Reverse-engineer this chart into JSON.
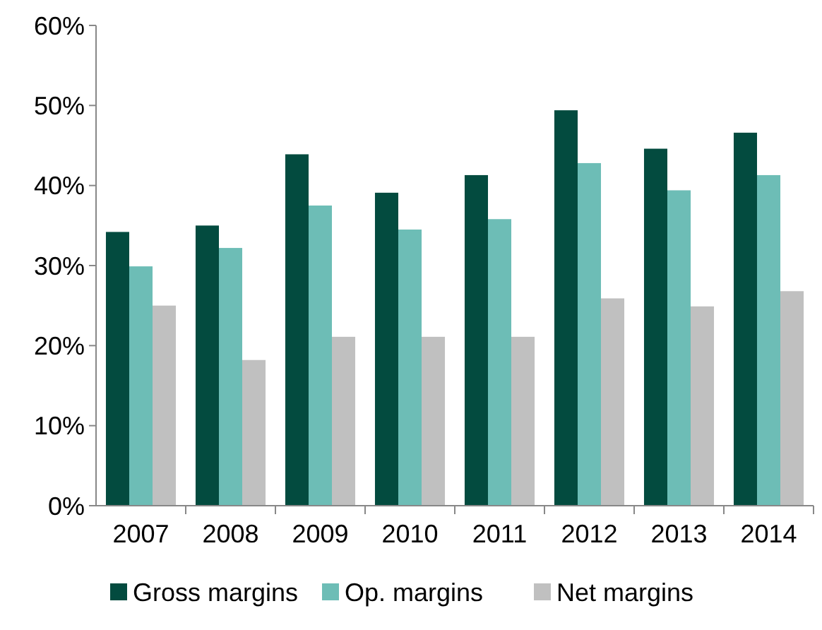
{
  "chart_data": {
    "type": "bar",
    "categories": [
      "2007",
      "2008",
      "2009",
      "2010",
      "2011",
      "2012",
      "2013",
      "2014"
    ],
    "series": [
      {
        "name": "Gross margins",
        "color": "#034b3f",
        "values": [
          34.2,
          35.0,
          43.9,
          39.1,
          41.3,
          49.4,
          44.6,
          46.6
        ]
      },
      {
        "name": "Op. margins",
        "color": "#6dbdb6",
        "values": [
          29.9,
          32.2,
          37.5,
          34.5,
          35.8,
          42.8,
          39.4,
          41.3
        ]
      },
      {
        "name": "Net margins",
        "color": "#c0c0c0",
        "values": [
          25.0,
          18.2,
          21.1,
          21.1,
          21.1,
          25.9,
          24.9,
          26.8
        ]
      }
    ],
    "ylim": [
      0,
      60
    ],
    "yticks": [
      {
        "value": 0,
        "label": "0%"
      },
      {
        "value": 10,
        "label": "10%"
      },
      {
        "value": 20,
        "label": "20%"
      },
      {
        "value": 30,
        "label": "30%"
      },
      {
        "value": 40,
        "label": "40%"
      },
      {
        "value": 50,
        "label": "50%"
      },
      {
        "value": 60,
        "label": "60%"
      }
    ],
    "grid": false,
    "legend": "bottom"
  }
}
